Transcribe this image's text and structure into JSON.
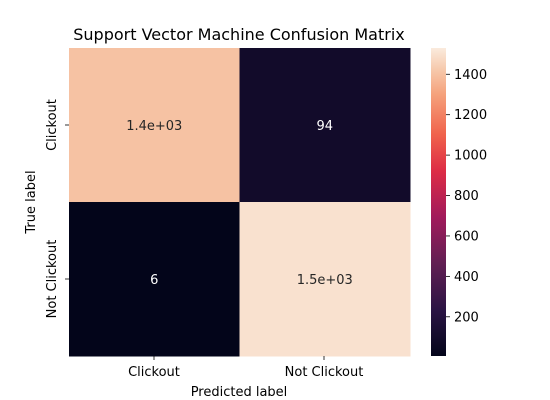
{
  "chart_data": {
    "type": "heatmap",
    "title": "Support Vector Machine Confusion Matrix",
    "xlabel": "Predicted label",
    "ylabel": "True label",
    "x_categories": [
      "Clickout",
      "Not Clickout"
    ],
    "y_categories": [
      "Clickout",
      "Not Clickout"
    ],
    "values": [
      [
        1400,
        94
      ],
      [
        6,
        1500
      ]
    ],
    "annotations": [
      [
        "1.4e+03",
        "94"
      ],
      [
        "6",
        "1.5e+03"
      ]
    ],
    "colorbar": {
      "range": [
        6,
        1530
      ],
      "ticks": [
        200,
        400,
        600,
        800,
        1000,
        1200,
        1400
      ],
      "tick_labels": [
        "200",
        "400",
        "600",
        "800",
        "1000",
        "1200",
        "1400"
      ]
    },
    "colormap": "rocket",
    "grid": false,
    "legend": "colorbar-right"
  }
}
